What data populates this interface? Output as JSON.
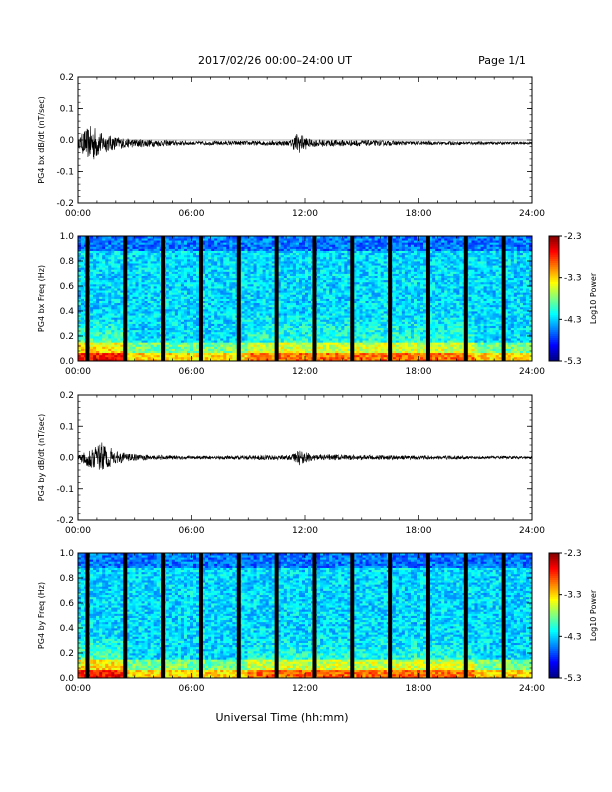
{
  "header": {
    "title": "2017/02/26  00:00–24:00 UT",
    "page": "Page 1/1"
  },
  "x_title": "Universal Time (hh:mm)",
  "chart_data": [
    {
      "type": "line",
      "ylabel": "PG4 bx dB/dt (nT/sec)",
      "xlim": [
        0,
        24
      ],
      "ylim": [
        -0.2,
        0.2
      ],
      "x_ticks": [
        "00:00",
        "06:00",
        "12:00",
        "18:00",
        "24:00"
      ],
      "y_ticks": [
        "0.2",
        "0.1",
        "0.0",
        "-0.1",
        "-0.2"
      ],
      "y_tick_values": [
        0.2,
        0.1,
        0.0,
        -0.1,
        -0.2
      ],
      "baseline": -0.01,
      "envelope": [
        {
          "t": 0.0,
          "amp": 0.01
        },
        {
          "t": 0.3,
          "amp": 0.04
        },
        {
          "t": 0.8,
          "amp": 0.06
        },
        {
          "t": 1.3,
          "amp": 0.03
        },
        {
          "t": 2.5,
          "amp": 0.015
        },
        {
          "t": 6.0,
          "amp": 0.006
        },
        {
          "t": 11.2,
          "amp": 0.008
        },
        {
          "t": 11.6,
          "amp": 0.035
        },
        {
          "t": 12.3,
          "amp": 0.012
        },
        {
          "t": 14.5,
          "amp": 0.01
        },
        {
          "t": 18.0,
          "amp": 0.006
        },
        {
          "t": 24.0,
          "amp": 0.004
        }
      ]
    },
    {
      "type": "heatmap",
      "ylabel": "PG4 bx Freq (Hz)",
      "xlim": [
        0,
        24
      ],
      "ylim": [
        0.0,
        1.0
      ],
      "x_ticks": [
        "00:00",
        "06:00",
        "12:00",
        "18:00",
        "24:00"
      ],
      "y_ticks": [
        "1.0",
        "0.8",
        "0.6",
        "0.4",
        "0.2",
        "0.0"
      ],
      "y_tick_values": [
        1.0,
        0.8,
        0.6,
        0.4,
        0.2,
        0.0
      ],
      "colorbar": {
        "label": "Log10 Power",
        "ticks": [
          "-2.3",
          "-3.3",
          "-4.3",
          "-5.3"
        ],
        "range": [
          -5.3,
          -2.3
        ]
      },
      "data_gaps_hours": [
        0.5,
        2.5,
        4.5,
        6.5,
        8.5,
        10.5,
        12.5,
        14.5,
        16.5,
        18.5,
        20.5,
        22.5
      ],
      "enhanced_band": {
        "t_start": 9.0,
        "t_end": 21.0,
        "freq_max": 0.4
      }
    },
    {
      "type": "line",
      "ylabel": "PG4 by dB/dt (nT/sec)",
      "xlim": [
        0,
        24
      ],
      "ylim": [
        -0.2,
        0.2
      ],
      "x_ticks": [
        "00:00",
        "06:00",
        "12:00",
        "18:00",
        "24:00"
      ],
      "y_ticks": [
        "0.2",
        "0.1",
        "0.0",
        "-0.1",
        "-0.2"
      ],
      "y_tick_values": [
        0.2,
        0.1,
        0.0,
        -0.1,
        -0.2
      ],
      "baseline": 0.0,
      "envelope": [
        {
          "t": 0.0,
          "amp": 0.008
        },
        {
          "t": 0.5,
          "amp": 0.03
        },
        {
          "t": 1.3,
          "amp": 0.05
        },
        {
          "t": 2.0,
          "amp": 0.02
        },
        {
          "t": 3.0,
          "amp": 0.01
        },
        {
          "t": 6.0,
          "amp": 0.005
        },
        {
          "t": 11.3,
          "amp": 0.008
        },
        {
          "t": 11.7,
          "amp": 0.025
        },
        {
          "t": 12.4,
          "amp": 0.01
        },
        {
          "t": 14.5,
          "amp": 0.008
        },
        {
          "t": 18.0,
          "amp": 0.006
        },
        {
          "t": 24.0,
          "amp": 0.004
        }
      ]
    },
    {
      "type": "heatmap",
      "ylabel": "PG4 by Freq (Hz)",
      "xlim": [
        0,
        24
      ],
      "ylim": [
        0.0,
        1.0
      ],
      "x_ticks": [
        "00:00",
        "06:00",
        "12:00",
        "18:00",
        "24:00"
      ],
      "y_ticks": [
        "1.0",
        "0.8",
        "0.6",
        "0.4",
        "0.2",
        "0.0"
      ],
      "y_tick_values": [
        1.0,
        0.8,
        0.6,
        0.4,
        0.2,
        0.0
      ],
      "colorbar": {
        "label": "Log10 Power",
        "ticks": [
          "-2.3",
          "-3.3",
          "-4.3",
          "-5.3"
        ],
        "range": [
          -5.3,
          -2.3
        ]
      },
      "data_gaps_hours": [
        0.5,
        2.5,
        4.5,
        6.5,
        8.5,
        10.5,
        12.5,
        14.5,
        16.5,
        18.5,
        20.5,
        22.5
      ],
      "enhanced_band": {
        "t_start": 9.0,
        "t_end": 21.0,
        "freq_max": 0.35
      }
    }
  ]
}
